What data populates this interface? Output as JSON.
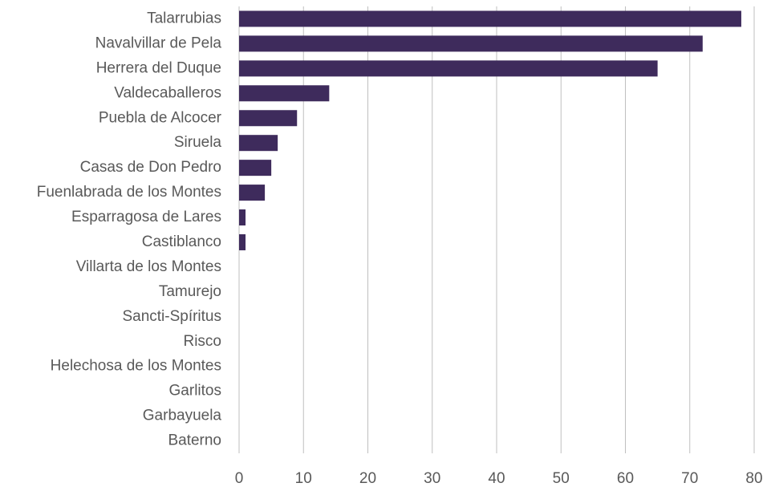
{
  "chart_data": {
    "type": "bar",
    "orientation": "horizontal",
    "categories": [
      "Talarrubias",
      "Navalvillar de Pela",
      "Herrera del Duque",
      "Valdecaballeros",
      "Puebla de Alcocer",
      "Siruela",
      "Casas de Don Pedro",
      "Fuenlabrada de los Montes",
      "Esparragosa de Lares",
      "Castiblanco",
      "Villarta de los Montes",
      "Tamurejo",
      "Sancti-Spíritus",
      "Risco",
      "Helechosa de los Montes",
      "Garlitos",
      "Garbayuela",
      "Baterno"
    ],
    "values": [
      78,
      72,
      65,
      14,
      9,
      6,
      5,
      4,
      1,
      1,
      0,
      0,
      0,
      0,
      0,
      0,
      0,
      0
    ],
    "color": "#3e2b5c",
    "xlim": [
      0,
      80
    ],
    "xticks": [
      0,
      10,
      20,
      30,
      40,
      50,
      60,
      70,
      80
    ],
    "grid": true
  }
}
